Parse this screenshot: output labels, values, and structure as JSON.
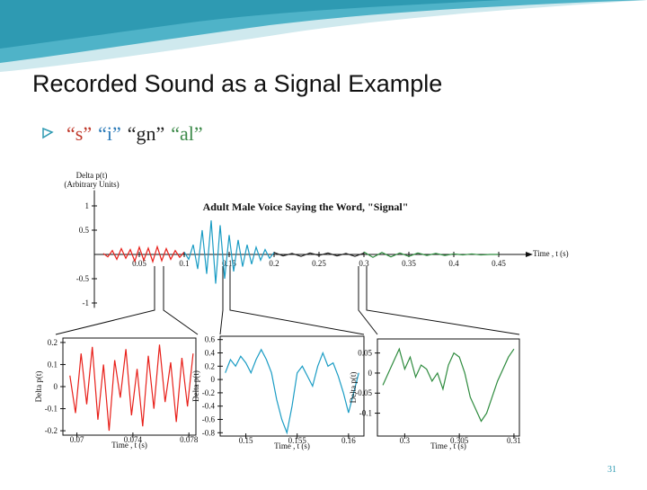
{
  "slide": {
    "title": "Recorded Sound as a Signal Example",
    "bullet": [
      {
        "text": "“s”",
        "color": "#c0392b"
      },
      {
        "text": "“i”",
        "color": "#2a7ab8"
      },
      {
        "text": "“gn”",
        "color": "#222222"
      },
      {
        "text": "“al”",
        "color": "#3d8a4a"
      }
    ],
    "page_number": "31"
  },
  "charts": [
    {
      "type": "line",
      "axes": "origin",
      "title": "Adult Male Voice Saying the Word, \"Signal\"",
      "ylabel": [
        "Delta p(t)",
        "(Arbitrary Units)"
      ],
      "xlabel": "Time , t (s)",
      "xlim": [
        0,
        0.48
      ],
      "ylim": [
        -1.1,
        1.1
      ],
      "xticks": [
        0.05,
        0.1,
        0.15,
        0.2,
        0.25,
        0.3,
        0.35,
        0.4,
        0.45
      ],
      "yticks": [
        1,
        0.5,
        -0.5,
        -1
      ],
      "series": [
        {
          "color": "#e8201a",
          "x": [
            0.01,
            0.015,
            0.02,
            0.025,
            0.03,
            0.035,
            0.04,
            0.045,
            0.05,
            0.055,
            0.06,
            0.065,
            0.07,
            0.075,
            0.08,
            0.085,
            0.09,
            0.095,
            0.1
          ],
          "values": [
            0.02,
            -0.05,
            0.08,
            -0.1,
            0.12,
            -0.08,
            0.1,
            -0.14,
            0.15,
            -0.12,
            0.13,
            -0.15,
            0.16,
            -0.13,
            0.12,
            -0.1,
            0.08,
            -0.06,
            0.05
          ]
        },
        {
          "color": "#1a9cc4",
          "x": [
            0.1,
            0.105,
            0.11,
            0.115,
            0.12,
            0.125,
            0.13,
            0.135,
            0.14,
            0.145,
            0.15,
            0.155,
            0.16,
            0.165,
            0.17,
            0.175,
            0.18,
            0.185,
            0.19,
            0.195,
            0.2
          ],
          "values": [
            0.05,
            -0.1,
            0.2,
            -0.3,
            0.5,
            -0.4,
            0.7,
            -0.6,
            0.6,
            -0.5,
            0.4,
            -0.35,
            0.3,
            -0.25,
            0.2,
            -0.2,
            0.15,
            -0.12,
            0.1,
            -0.08,
            0.04
          ]
        },
        {
          "color": "#222222",
          "x": [
            0.2,
            0.21,
            0.22,
            0.23,
            0.24,
            0.25,
            0.26,
            0.27,
            0.28,
            0.29,
            0.3
          ],
          "values": [
            0.04,
            -0.03,
            0.02,
            -0.04,
            0.03,
            -0.02,
            0.03,
            -0.03,
            0.02,
            -0.04,
            0.03
          ]
        },
        {
          "color": "#2e8b3e",
          "x": [
            0.3,
            0.31,
            0.32,
            0.33,
            0.34,
            0.35,
            0.36,
            0.37,
            0.38,
            0.39,
            0.4,
            0.41,
            0.42,
            0.43,
            0.44,
            0.45
          ],
          "values": [
            0.05,
            -0.06,
            0.04,
            -0.05,
            0.03,
            -0.04,
            0.03,
            -0.02,
            0.02,
            -0.02,
            0.01,
            -0.01,
            0.01,
            -0.01,
            0.0,
            0.0
          ]
        }
      ]
    },
    {
      "type": "line",
      "axes": "box",
      "ylabel": [
        "Delta p(t)"
      ],
      "xlabel": "Time , t (s)",
      "xlim": [
        0.069,
        0.0785
      ],
      "ylim": [
        -0.22,
        0.22
      ],
      "xticks": [
        0.07,
        0.074,
        0.078
      ],
      "yticks": [
        0.2,
        0.1,
        0,
        -0.1,
        -0.2
      ],
      "series": [
        {
          "color": "#e8201a",
          "x": [
            0.0695,
            0.0699,
            0.0703,
            0.0707,
            0.0711,
            0.0715,
            0.0719,
            0.0723,
            0.0727,
            0.0731,
            0.0735,
            0.0739,
            0.0743,
            0.0747,
            0.0751,
            0.0755,
            0.0759,
            0.0763,
            0.0767,
            0.0771,
            0.0775,
            0.0779,
            0.0783
          ],
          "values": [
            0.05,
            -0.12,
            0.15,
            -0.08,
            0.18,
            -0.15,
            0.1,
            -0.2,
            0.12,
            -0.05,
            0.17,
            -0.13,
            0.08,
            -0.18,
            0.14,
            -0.1,
            0.19,
            -0.07,
            0.11,
            -0.16,
            0.13,
            -0.09,
            0.15
          ]
        }
      ]
    },
    {
      "type": "line",
      "axes": "box",
      "ylabel": [
        "Delta p(t)"
      ],
      "xlabel": "Time , t (s)",
      "xlim": [
        0.1475,
        0.1615
      ],
      "ylim": [
        -0.85,
        0.65
      ],
      "xticks": [
        0.15,
        0.155,
        0.16
      ],
      "yticks": [
        0.6,
        0.4,
        0.2,
        0,
        -0.2,
        -0.4,
        -0.6,
        -0.8
      ],
      "series": [
        {
          "color": "#1a9cc4",
          "x": [
            0.148,
            0.1485,
            0.149,
            0.1495,
            0.15,
            0.1505,
            0.151,
            0.1515,
            0.152,
            0.1525,
            0.153,
            0.1535,
            0.154,
            0.1545,
            0.155,
            0.1555,
            0.156,
            0.1565,
            0.157,
            0.1575,
            0.158,
            0.1585,
            0.159,
            0.1595,
            0.16,
            0.1605,
            0.161
          ],
          "values": [
            0.1,
            0.3,
            0.2,
            0.35,
            0.25,
            0.1,
            0.3,
            0.45,
            0.3,
            0.1,
            -0.3,
            -0.6,
            -0.8,
            -0.4,
            0.1,
            0.2,
            0.05,
            -0.1,
            0.2,
            0.4,
            0.2,
            0.25,
            0.05,
            -0.2,
            -0.5,
            -0.2,
            0.1
          ]
        }
      ]
    },
    {
      "type": "line",
      "axes": "box",
      "ylabel": [
        "Delta p(t)"
      ],
      "xlabel": "Time , t (s)",
      "xlim": [
        0.2975,
        0.3105
      ],
      "ylim": [
        -0.157,
        0.085
      ],
      "xticks": [
        0.3,
        0.305,
        0.31
      ],
      "yticks": [
        0.05,
        0,
        -0.05,
        -0.1
      ],
      "series": [
        {
          "color": "#2e8b3e",
          "x": [
            0.298,
            0.2985,
            0.299,
            0.2995,
            0.3,
            0.3005,
            0.301,
            0.3015,
            0.302,
            0.3025,
            0.303,
            0.3035,
            0.304,
            0.3045,
            0.305,
            0.3055,
            0.306,
            0.3065,
            0.307,
            0.3075,
            0.308,
            0.3085,
            0.309,
            0.3095,
            0.31
          ],
          "values": [
            -0.03,
            0.0,
            0.03,
            0.06,
            0.01,
            0.04,
            -0.01,
            0.02,
            0.01,
            -0.02,
            0.0,
            -0.04,
            0.02,
            0.05,
            0.04,
            0.0,
            -0.06,
            -0.09,
            -0.12,
            -0.1,
            -0.06,
            -0.02,
            0.01,
            0.04,
            0.06
          ]
        }
      ]
    }
  ]
}
